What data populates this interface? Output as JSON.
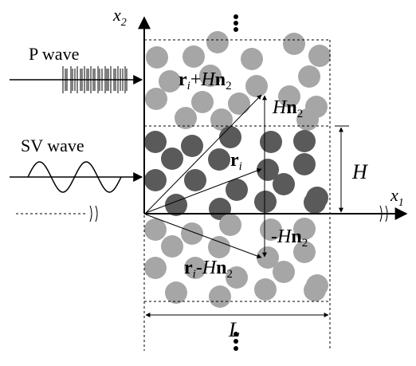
{
  "labels": {
    "x2": "x",
    "x2_sub": "2",
    "x1": "x",
    "x1_sub": "1",
    "p_wave": "P wave",
    "sv_wave": "SV wave",
    "r_plus_r": "r",
    "r_plus_i": "i",
    "r_plus_plus": "+",
    "r_plus_H": "H",
    "r_plus_n": "n",
    "r_plus_sub": "2",
    "hn2_H": "H",
    "hn2_n": "n",
    "hn2_sub": "2",
    "ri_r": "r",
    "ri_i": "i",
    "H_label": "H",
    "neg_minus": "-",
    "neg_H": "H",
    "neg_n": "n",
    "neg_sub": "2",
    "r_minus_r": "r",
    "r_minus_i": "i",
    "r_minus_minus": "-",
    "r_minus_H": "H",
    "r_minus_n": "n",
    "r_minus_sub": "2",
    "L_label": "L"
  },
  "colors": {
    "light_particle": "#a6a6a6",
    "dark_particle": "#5a5a5a",
    "line": "#000000"
  }
}
